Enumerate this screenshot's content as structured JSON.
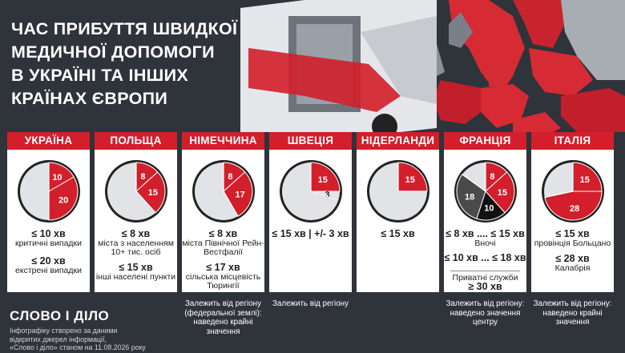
{
  "title_lines": [
    "ЧАС ПРИБУТТЯ ШВИДКОЇ",
    "МЕДИЧНОЇ ДОПОМОГИ",
    "В УКРАЇНІ ТА ІНШИХ",
    "КРАЇНАХ ЄВРОПИ"
  ],
  "colors": {
    "red": "#d21f2b",
    "grey_slice": "#e1e3e7",
    "dark_slice": "#4a4a4a",
    "black_slice": "#111111"
  },
  "countries": [
    {
      "name": "УКРАЇНА",
      "slices": [
        {
          "value": 10,
          "label": "10",
          "color": "red"
        },
        {
          "value": 20,
          "label": "20",
          "color": "red"
        }
      ],
      "lines": [
        {
          "big": "≤ 10 хв",
          "small": "критичні випадки"
        },
        {
          "big": "≤ 20 хв",
          "small": "екстрені випадки"
        }
      ],
      "footnote": ""
    },
    {
      "name": "ПОЛЬЩА",
      "slices": [
        {
          "value": 8,
          "label": "8",
          "color": "red"
        },
        {
          "value": 15,
          "label": "15",
          "color": "red"
        }
      ],
      "lines": [
        {
          "big": "≤ 8 хв",
          "small": "міста з населенням 10+ тис. осіб"
        },
        {
          "big": "≤ 15 хв",
          "small": "інші населені пункти"
        }
      ],
      "footnote": ""
    },
    {
      "name": "НІМЕЧЧИНА",
      "slices": [
        {
          "value": 8,
          "label": "8",
          "color": "red"
        },
        {
          "value": 17,
          "label": "17",
          "color": "red"
        }
      ],
      "lines": [
        {
          "big": "≤ 8 хв",
          "small": "міста Північної Рейн-Вестфалії"
        },
        {
          "big": "≤ 17 хв",
          "small": "сільська місцевість Тюрингії"
        }
      ],
      "footnote": "Залежить від регіону (федеральної землі): наведено крайні значення"
    },
    {
      "name": "ШВЕЦІЯ",
      "slices": [
        {
          "value": 15,
          "label": "15",
          "color": "red"
        },
        {
          "value": 3,
          "label": "3",
          "color": "grey"
        }
      ],
      "lines": [
        {
          "big": "≤ 15 хв | +/- 3 хв",
          "small": ""
        }
      ],
      "footnote": "Залежить від регіону"
    },
    {
      "name": "НІДЕРЛАНДИ",
      "slices": [
        {
          "value": 15,
          "label": "15",
          "color": "red"
        }
      ],
      "lines": [
        {
          "big": "≤ 15 хв",
          "small": ""
        }
      ],
      "footnote": ""
    },
    {
      "name": "ФРАНЦІЯ",
      "slices": [
        {
          "value": 8,
          "label": "8",
          "color": "red"
        },
        {
          "value": 15,
          "label": "15",
          "color": "red"
        },
        {
          "value": 10,
          "label": "10",
          "color": "black"
        },
        {
          "value": 18,
          "label": "18",
          "color": "dark"
        }
      ],
      "lines": [
        {
          "big": "≤ 8 хв .... ≤ 15 хв",
          "small": "Вночі"
        },
        {
          "big": "≤ 10 хв ... ≤ 18 хв",
          "small": ""
        },
        {
          "big": "",
          "small": "Приватні служби"
        },
        {
          "big": "≥ 30 хв",
          "small": ""
        }
      ],
      "footnote": "Залежить від регіону: наведено значення центру"
    },
    {
      "name": "ІТАЛІЯ",
      "slices": [
        {
          "value": 15,
          "label": "15",
          "color": "red"
        },
        {
          "value": 28,
          "label": "28",
          "color": "red"
        }
      ],
      "lines": [
        {
          "big": "≤ 15 хв",
          "small": "провінція Больцано"
        },
        {
          "big": "≤ 28 хв",
          "small": "Калабрія"
        }
      ],
      "footnote": "Залежить від регіону: наведено крайні значення"
    }
  ],
  "logo": "СЛОВО І ДІЛО",
  "credit_lines": [
    "Інфографіку створено за даними",
    "відкритих джерел інформації,",
    "«Слово і діло» станом на 11.08.2026 року"
  ]
}
